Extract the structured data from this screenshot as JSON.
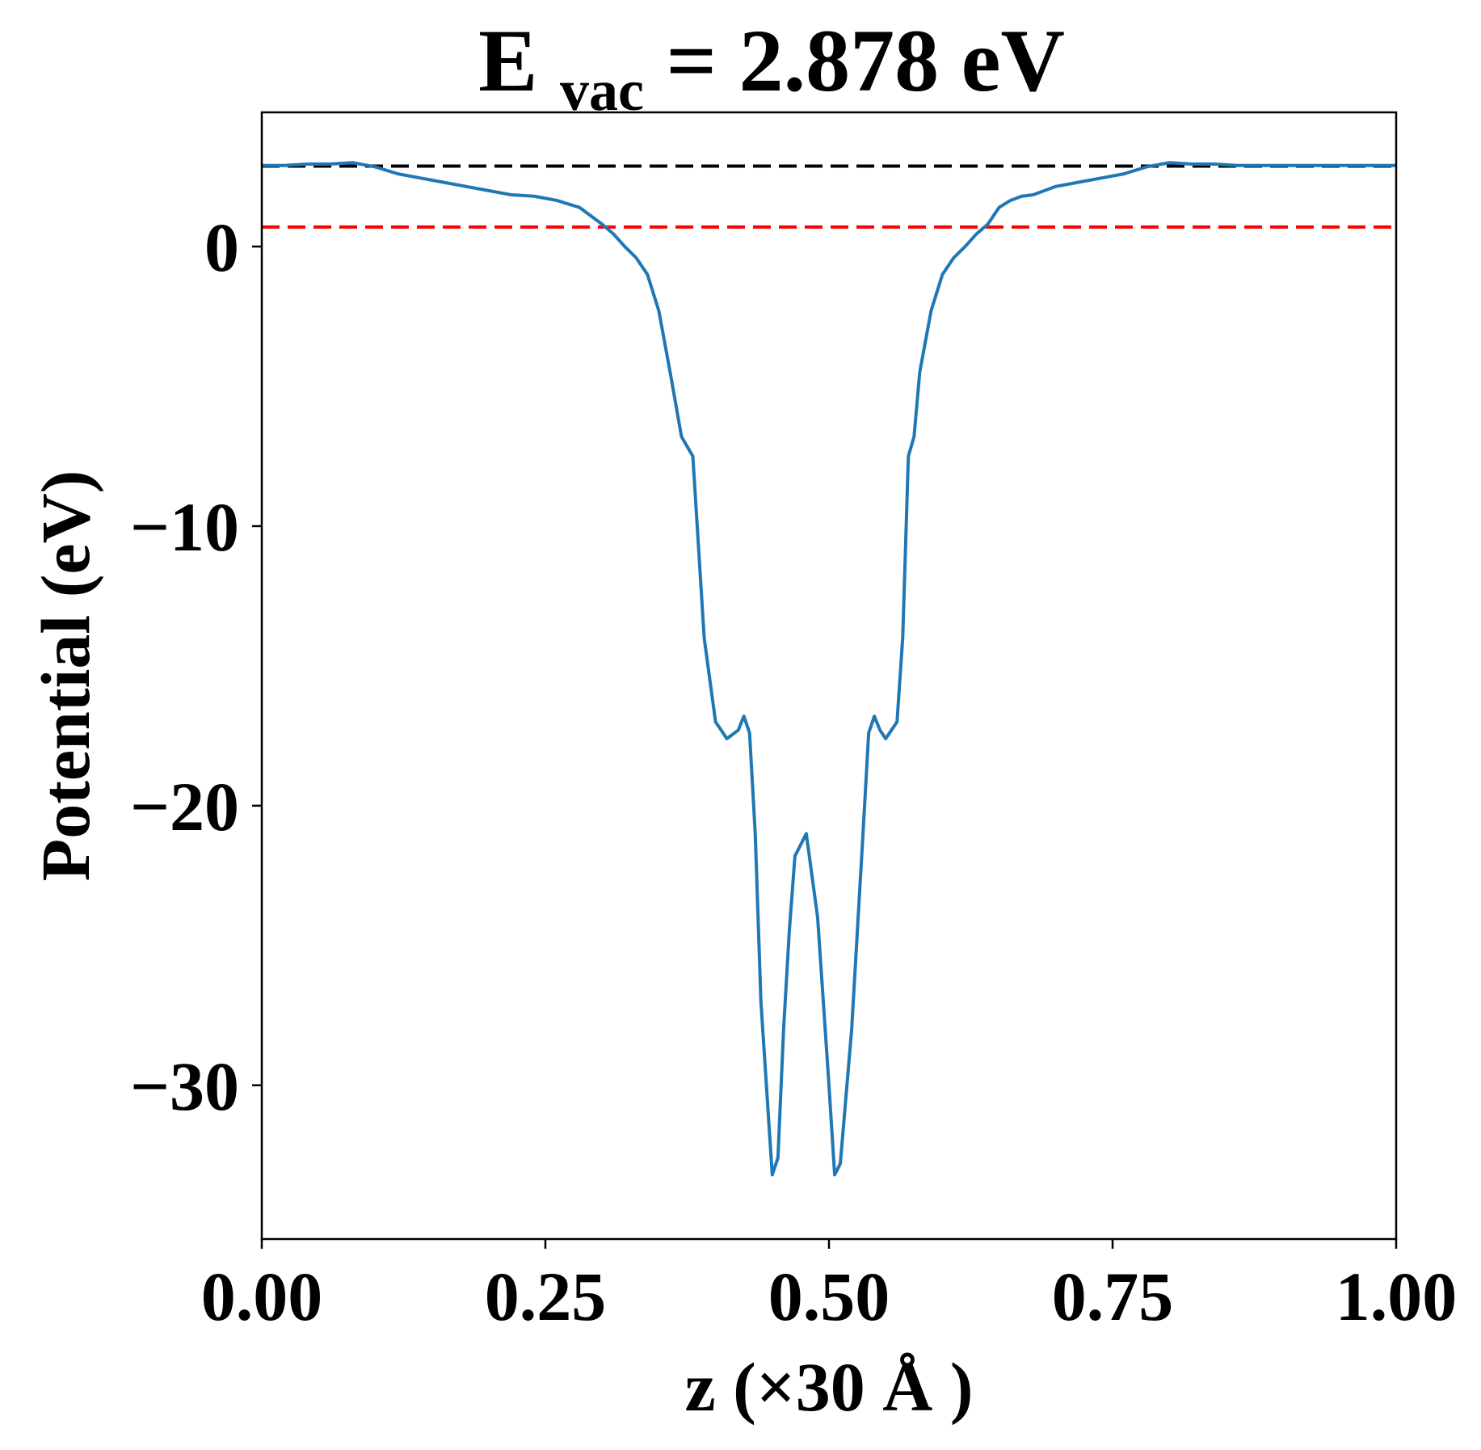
{
  "chart_data": {
    "type": "line",
    "title": {
      "main": "E",
      "subscript": "vac",
      "rest": " = 2.878 eV"
    },
    "xlabel": "z (×30 Å )",
    "ylabel": "Potential (eV)",
    "xlim": [
      0,
      1
    ],
    "ylim": [
      -35.5,
      4.8
    ],
    "grid": false,
    "legend": "none",
    "xticks": [
      {
        "value": 0.0,
        "label": "0.00"
      },
      {
        "value": 0.25,
        "label": "0.25"
      },
      {
        "value": 0.5,
        "label": "0.50"
      },
      {
        "value": 0.75,
        "label": "0.75"
      },
      {
        "value": 1.0,
        "label": "1.00"
      }
    ],
    "yticks": [
      {
        "value": 0,
        "label": "0"
      },
      {
        "value": -10,
        "label": "−10"
      },
      {
        "value": -20,
        "label": "−20"
      },
      {
        "value": -30,
        "label": "−30"
      }
    ],
    "reference_lines": [
      {
        "y": 2.878,
        "color": "#000000",
        "style": "dashed"
      },
      {
        "y": 0.7,
        "color": "#ff0000",
        "style": "dashed"
      }
    ],
    "series": [
      {
        "color": "#1f77b4",
        "x": [
          0.0,
          0.02,
          0.04,
          0.06,
          0.08,
          0.1,
          0.12,
          0.14,
          0.16,
          0.18,
          0.2,
          0.22,
          0.24,
          0.26,
          0.28,
          0.3,
          0.31,
          0.32,
          0.33,
          0.34,
          0.35,
          0.36,
          0.37,
          0.38,
          0.39,
          0.4,
          0.41,
          0.42,
          0.425,
          0.43,
          0.435,
          0.44,
          0.45,
          0.455,
          0.46,
          0.465,
          0.47,
          0.48,
          0.49,
          0.495,
          0.5,
          0.505,
          0.51,
          0.52,
          0.53,
          0.535,
          0.54,
          0.545,
          0.55,
          0.56,
          0.565,
          0.57,
          0.575,
          0.58,
          0.59,
          0.6,
          0.61,
          0.62,
          0.63,
          0.64,
          0.65,
          0.66,
          0.67,
          0.68,
          0.69,
          0.7,
          0.72,
          0.74,
          0.76,
          0.78,
          0.8,
          0.82,
          0.84,
          0.86,
          0.88,
          0.9,
          0.92,
          0.94,
          0.96,
          0.98,
          1.0
        ],
        "y": [
          2.9,
          2.9,
          2.95,
          2.95,
          3.0,
          2.85,
          2.6,
          2.45,
          2.3,
          2.15,
          2.0,
          1.85,
          1.8,
          1.65,
          1.4,
          0.8,
          0.45,
          0.0,
          -0.4,
          -1.0,
          -2.3,
          -4.5,
          -6.8,
          -7.5,
          -14.0,
          -17.0,
          -17.6,
          -17.3,
          -16.8,
          -17.4,
          -21.0,
          -27.0,
          -33.2,
          -32.6,
          -28.0,
          -24.5,
          -21.8,
          -21.0,
          -24.0,
          -27.0,
          -30.0,
          -33.2,
          -32.8,
          -28.0,
          -21.0,
          -17.4,
          -16.8,
          -17.3,
          -17.6,
          -17.0,
          -14.0,
          -7.5,
          -6.8,
          -4.5,
          -2.3,
          -1.0,
          -0.4,
          0.0,
          0.45,
          0.8,
          1.4,
          1.65,
          1.8,
          1.85,
          2.0,
          2.15,
          2.3,
          2.45,
          2.6,
          2.85,
          3.0,
          2.95,
          2.95,
          2.9,
          2.9,
          2.9,
          2.9,
          2.9,
          2.9,
          2.9,
          2.9
        ]
      }
    ]
  }
}
